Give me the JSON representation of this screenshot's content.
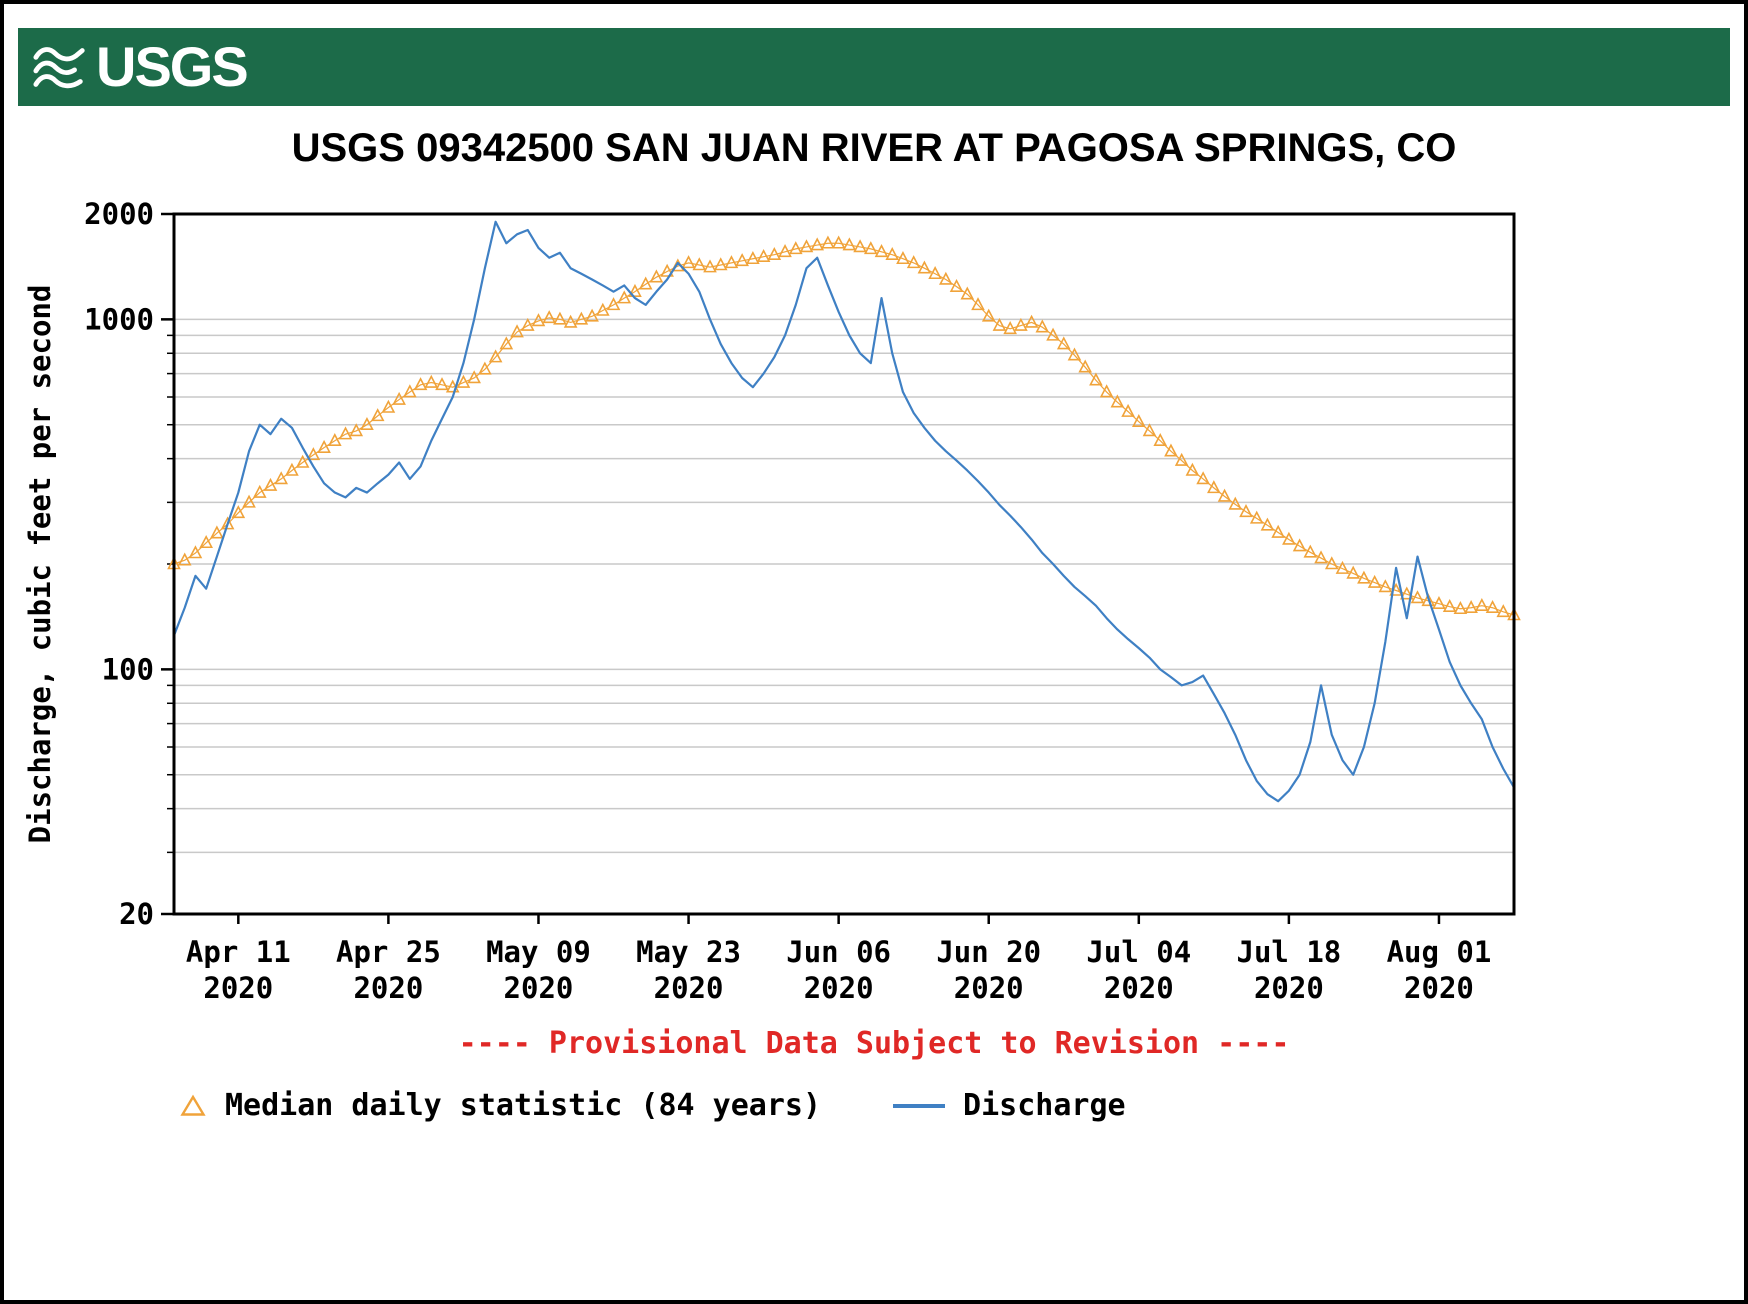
{
  "header": {
    "logo_text": "USGS"
  },
  "notice": {
    "text": "---- Provisional Data Subject to Revision ----"
  },
  "colors": {
    "header_bg": "#1c6b49",
    "grid": "#c9c9c9",
    "axis": "#000000",
    "notice_red": "#e02826",
    "median_orange": "#f0a33a",
    "discharge_blue": "#3f80c4",
    "background": "#ffffff",
    "border": "#000000"
  },
  "chart_data": {
    "type": "line",
    "title": "USGS 09342500 SAN JUAN RIVER AT PAGOSA SPRINGS, CO",
    "xlabel": "",
    "ylabel": "Discharge, cubic feet per second",
    "y_scale": "log",
    "ylim": [
      20,
      2000
    ],
    "grid": "horizontal-only",
    "legend_position": "bottom",
    "y_major_ticks": [
      20,
      100,
      1000,
      2000
    ],
    "y_gridlines": [
      30,
      40,
      50,
      60,
      70,
      80,
      90,
      100,
      200,
      300,
      400,
      500,
      600,
      700,
      800,
      900,
      1000
    ],
    "x_tick_labels": [
      "Apr 11",
      "Apr 25",
      "May 09",
      "May 23",
      "Jun 06",
      "Jun 20",
      "Jul 04",
      "Jul 18",
      "Aug 01"
    ],
    "x_tick_year": "2020",
    "x_tick_indices": [
      6,
      20,
      34,
      48,
      62,
      76,
      90,
      104,
      118
    ],
    "dates": [
      "Apr 05",
      "Apr 06",
      "Apr 07",
      "Apr 08",
      "Apr 09",
      "Apr 10",
      "Apr 11",
      "Apr 12",
      "Apr 13",
      "Apr 14",
      "Apr 15",
      "Apr 16",
      "Apr 17",
      "Apr 18",
      "Apr 19",
      "Apr 20",
      "Apr 21",
      "Apr 22",
      "Apr 23",
      "Apr 24",
      "Apr 25",
      "Apr 26",
      "Apr 27",
      "Apr 28",
      "Apr 29",
      "Apr 30",
      "May 01",
      "May 02",
      "May 03",
      "May 04",
      "May 05",
      "May 06",
      "May 07",
      "May 08",
      "May 09",
      "May 10",
      "May 11",
      "May 12",
      "May 13",
      "May 14",
      "May 15",
      "May 16",
      "May 17",
      "May 18",
      "May 19",
      "May 20",
      "May 21",
      "May 22",
      "May 23",
      "May 24",
      "May 25",
      "May 26",
      "May 27",
      "May 28",
      "May 29",
      "May 30",
      "May 31",
      "Jun 01",
      "Jun 02",
      "Jun 03",
      "Jun 04",
      "Jun 05",
      "Jun 06",
      "Jun 07",
      "Jun 08",
      "Jun 09",
      "Jun 10",
      "Jun 11",
      "Jun 12",
      "Jun 13",
      "Jun 14",
      "Jun 15",
      "Jun 16",
      "Jun 17",
      "Jun 18",
      "Jun 19",
      "Jun 20",
      "Jun 21",
      "Jun 22",
      "Jun 23",
      "Jun 24",
      "Jun 25",
      "Jun 26",
      "Jun 27",
      "Jun 28",
      "Jun 29",
      "Jun 30",
      "Jul 01",
      "Jul 02",
      "Jul 03",
      "Jul 04",
      "Jul 05",
      "Jul 06",
      "Jul 07",
      "Jul 08",
      "Jul 09",
      "Jul 10",
      "Jul 11",
      "Jul 12",
      "Jul 13",
      "Jul 14",
      "Jul 15",
      "Jul 16",
      "Jul 17",
      "Jul 18",
      "Jul 19",
      "Jul 20",
      "Jul 21",
      "Jul 22",
      "Jul 23",
      "Jul 24",
      "Jul 25",
      "Jul 26",
      "Jul 27",
      "Jul 28",
      "Jul 29",
      "Jul 30",
      "Jul 31",
      "Aug 01",
      "Aug 02",
      "Aug 03",
      "Aug 04",
      "Aug 05",
      "Aug 06",
      "Aug 07",
      "Aug 08"
    ],
    "series": [
      {
        "name": "Median daily statistic (84 years)",
        "marker": "triangle",
        "color": "#f0a33a",
        "values": [
          200,
          205,
          215,
          230,
          245,
          260,
          280,
          300,
          320,
          335,
          350,
          370,
          390,
          410,
          430,
          450,
          470,
          480,
          500,
          530,
          560,
          590,
          620,
          650,
          660,
          650,
          640,
          660,
          680,
          720,
          780,
          850,
          920,
          960,
          990,
          1010,
          1000,
          980,
          1000,
          1020,
          1060,
          1100,
          1150,
          1200,
          1260,
          1320,
          1370,
          1420,
          1450,
          1430,
          1410,
          1430,
          1450,
          1470,
          1490,
          1510,
          1530,
          1560,
          1590,
          1610,
          1630,
          1650,
          1650,
          1630,
          1610,
          1590,
          1560,
          1530,
          1490,
          1450,
          1400,
          1350,
          1300,
          1240,
          1180,
          1100,
          1020,
          960,
          940,
          960,
          980,
          950,
          900,
          850,
          790,
          730,
          670,
          620,
          580,
          545,
          510,
          480,
          450,
          420,
          395,
          370,
          350,
          330,
          312,
          296,
          282,
          270,
          258,
          246,
          235,
          225,
          216,
          208,
          200,
          194,
          188,
          182,
          177,
          172,
          168,
          164,
          160,
          157,
          154,
          151,
          149,
          150,
          152,
          150,
          146,
          143
        ]
      },
      {
        "name": "Discharge",
        "marker": "line",
        "color": "#3f80c4",
        "values": [
          125,
          150,
          185,
          170,
          210,
          260,
          320,
          420,
          500,
          470,
          520,
          490,
          430,
          380,
          340,
          320,
          310,
          330,
          320,
          340,
          360,
          390,
          350,
          380,
          450,
          520,
          600,
          750,
          1000,
          1400,
          1900,
          1650,
          1750,
          1800,
          1600,
          1500,
          1550,
          1400,
          1350,
          1300,
          1250,
          1200,
          1250,
          1150,
          1100,
          1200,
          1300,
          1450,
          1350,
          1200,
          1000,
          850,
          750,
          680,
          640,
          700,
          780,
          900,
          1100,
          1400,
          1500,
          1250,
          1050,
          900,
          800,
          750,
          1150,
          800,
          620,
          540,
          490,
          450,
          420,
          395,
          370,
          345,
          320,
          295,
          275,
          255,
          235,
          215,
          200,
          185,
          172,
          162,
          152,
          140,
          130,
          122,
          115,
          108,
          100,
          95,
          90,
          92,
          96,
          85,
          75,
          65,
          55,
          48,
          44,
          42,
          45,
          50,
          62,
          90,
          65,
          55,
          50,
          60,
          80,
          120,
          195,
          140,
          210,
          160,
          130,
          105,
          90,
          80,
          72,
          60,
          52,
          46
        ]
      }
    ]
  }
}
